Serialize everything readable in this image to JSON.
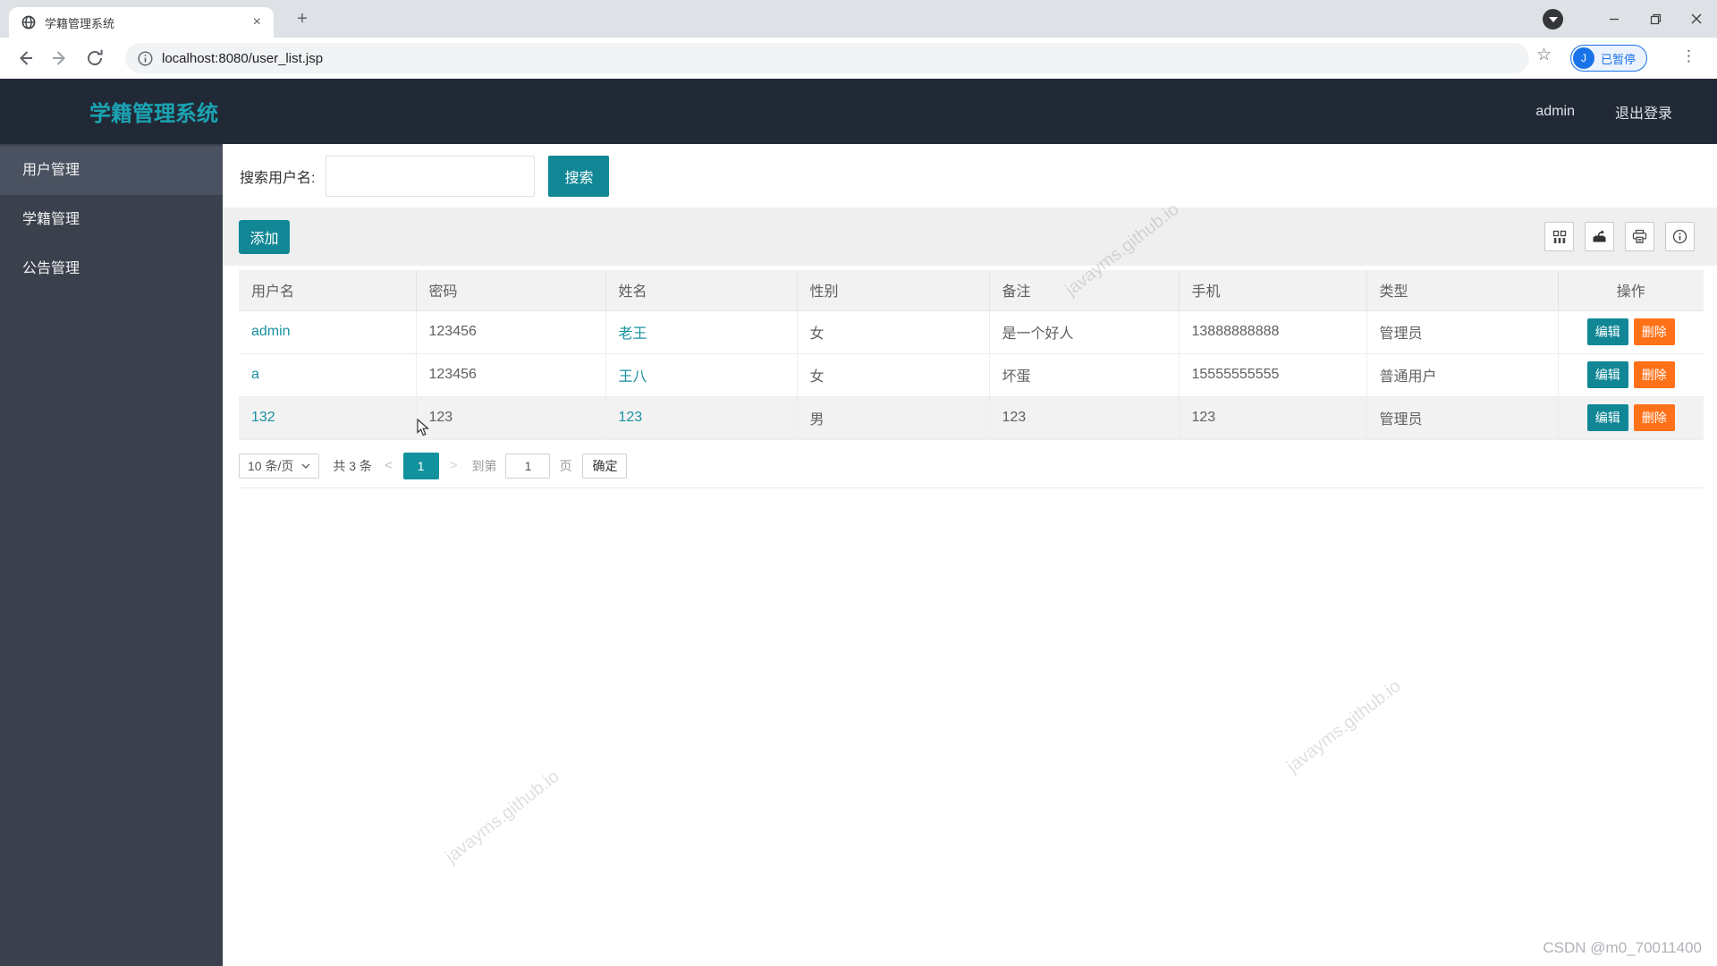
{
  "browser": {
    "tab_title": "学籍管理系统",
    "new_tab_glyph": "+",
    "tab_close_glyph": "×",
    "url": "localhost:8080/user_list.jsp",
    "star_glyph": "☆",
    "more_glyph": "⋮",
    "profile": {
      "initial": "J",
      "label": "已暂停"
    }
  },
  "app_header": {
    "title": "学籍管理系统",
    "username": "admin",
    "logout_label": "退出登录"
  },
  "sidebar": {
    "items": [
      {
        "label": "用户管理",
        "active": true
      },
      {
        "label": "学籍管理",
        "active": false
      },
      {
        "label": "公告管理",
        "active": false
      }
    ]
  },
  "search": {
    "label": "搜索用户名:",
    "value": "",
    "button_label": "搜索"
  },
  "toolbar": {
    "add_label": "添加",
    "icon_names": [
      "filter-columns-icon",
      "export-icon",
      "print-icon",
      "info-icon"
    ]
  },
  "table": {
    "headers": [
      "用户名",
      "密码",
      "姓名",
      "性别",
      "备注",
      "手机",
      "类型",
      "操作"
    ],
    "rows": [
      {
        "username": "admin",
        "password": "123456",
        "name": "老王",
        "gender": "女",
        "note": "是一个好人",
        "phone": "13888888888",
        "type": "管理员"
      },
      {
        "username": "a",
        "password": "123456",
        "name": "王八",
        "gender": "女",
        "note": "坏蛋",
        "phone": "15555555555",
        "type": "普通用户"
      },
      {
        "username": "132",
        "password": "123",
        "name": "123",
        "gender": "男",
        "note": "123",
        "phone": "123",
        "type": "管理员"
      }
    ],
    "edit_label": "编辑",
    "delete_label": "删除"
  },
  "pagination": {
    "page_size_label": "10 条/页",
    "total_label": "共 3 条",
    "prev_glyph": "<",
    "current_page": "1",
    "next_glyph": ">",
    "goto_prefix": "到第",
    "goto_value": "1",
    "goto_suffix": "页",
    "confirm_label": "确定"
  },
  "watermarks": {
    "text": "javayms.github.io",
    "credit": "CSDN @m0_70011400"
  },
  "colors": {
    "accent_teal": "#118796",
    "link_teal": "#17919f",
    "danger_orange": "#ff7119",
    "header_bg": "#222936",
    "sidebar_bg": "#3a404c",
    "sidebar_active_bg": "#4a5160",
    "title_teal": "#1ba3b2",
    "profile_blue": "#1a73e8"
  }
}
